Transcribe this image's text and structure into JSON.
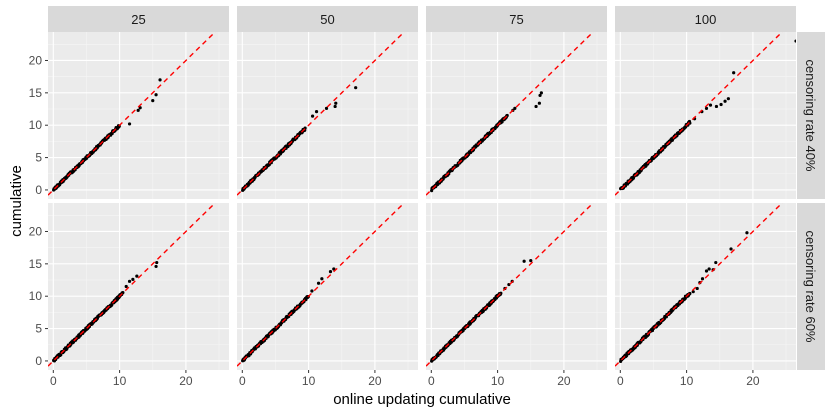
{
  "chart_data": {
    "type": "scatter",
    "xlabel": "online updating cumulative",
    "ylabel": "cumulative",
    "xlim": [
      -0.8,
      26.5
    ],
    "ylim": [
      -1.4,
      24.4
    ],
    "x_ticks": [
      0,
      10,
      20
    ],
    "y_ticks": [
      0,
      5,
      10,
      15,
      20
    ],
    "reference_line": {
      "slope": 1,
      "intercept": 0,
      "style": "dashed",
      "color": "#ff0000"
    },
    "grid": true,
    "colors": {
      "panel": "#ebebeb",
      "strip": "#d9d9d9",
      "grid_major": "#ffffff",
      "points": "#000000",
      "reference": "#ff0000"
    },
    "columns": [
      "25",
      "50",
      "75",
      "100"
    ],
    "rows": [
      "censoring rate 40%",
      "censoring rate 60%"
    ],
    "panels": [
      {
        "column": "25",
        "row": "censoring rate 40%",
        "dense_to": 10,
        "outliers": [
          [
            11.5,
            10.2
          ],
          [
            12.8,
            12.3
          ],
          [
            13.1,
            12.7
          ],
          [
            15.0,
            13.8
          ],
          [
            15.5,
            14.7
          ],
          [
            16.1,
            17.0
          ]
        ]
      },
      {
        "column": "50",
        "row": "censoring rate 40%",
        "dense_to": 9.5,
        "outliers": [
          [
            10.6,
            11.4
          ],
          [
            11.2,
            12.1
          ],
          [
            12.7,
            12.6
          ],
          [
            14.0,
            12.9
          ],
          [
            14.1,
            13.4
          ],
          [
            17.1,
            15.8
          ]
        ]
      },
      {
        "column": "75",
        "row": "censoring rate 40%",
        "dense_to": 11.5,
        "outliers": [
          [
            12.3,
            12.3
          ],
          [
            12.6,
            12.6
          ],
          [
            15.8,
            12.9
          ],
          [
            16.3,
            13.4
          ],
          [
            16.4,
            14.6
          ],
          [
            16.6,
            15.0
          ]
        ]
      },
      {
        "column": "100",
        "row": "censoring rate 40%",
        "dense_to": 10.5,
        "outliers": [
          [
            11.2,
            11.0
          ],
          [
            12.3,
            12.1
          ],
          [
            13.0,
            12.6
          ],
          [
            13.6,
            13.1
          ],
          [
            14.5,
            12.9
          ],
          [
            15.2,
            13.2
          ],
          [
            15.8,
            13.7
          ],
          [
            16.3,
            14.1
          ],
          [
            17.1,
            18.1
          ],
          [
            26.5,
            23.0
          ]
        ]
      },
      {
        "column": "25",
        "row": "censoring rate 60%",
        "dense_to": 10.5,
        "outliers": [
          [
            11.0,
            11.5
          ],
          [
            11.5,
            12.3
          ],
          [
            12.0,
            12.6
          ],
          [
            12.6,
            13.1
          ],
          [
            15.5,
            14.6
          ],
          [
            15.6,
            15.2
          ]
        ]
      },
      {
        "column": "50",
        "row": "censoring rate 60%",
        "dense_to": 10,
        "outliers": [
          [
            10.5,
            10.8
          ],
          [
            11.5,
            12.0
          ],
          [
            12.0,
            12.7
          ],
          [
            13.3,
            13.8
          ],
          [
            13.8,
            14.2
          ]
        ]
      },
      {
        "column": "75",
        "row": "censoring rate 60%",
        "dense_to": 10.5,
        "outliers": [
          [
            11.1,
            11.2
          ],
          [
            11.7,
            11.8
          ],
          [
            12.2,
            12.3
          ],
          [
            14.0,
            15.4
          ],
          [
            15.0,
            15.5
          ]
        ]
      },
      {
        "column": "100",
        "row": "censoring rate 60%",
        "dense_to": 10.5,
        "outliers": [
          [
            11.0,
            10.7
          ],
          [
            11.6,
            11.2
          ],
          [
            12.0,
            12.1
          ],
          [
            12.4,
            12.7
          ],
          [
            13.0,
            13.9
          ],
          [
            13.4,
            14.2
          ],
          [
            14.0,
            14.1
          ],
          [
            14.4,
            15.2
          ],
          [
            16.7,
            17.3
          ],
          [
            19.1,
            19.8
          ]
        ]
      }
    ]
  }
}
